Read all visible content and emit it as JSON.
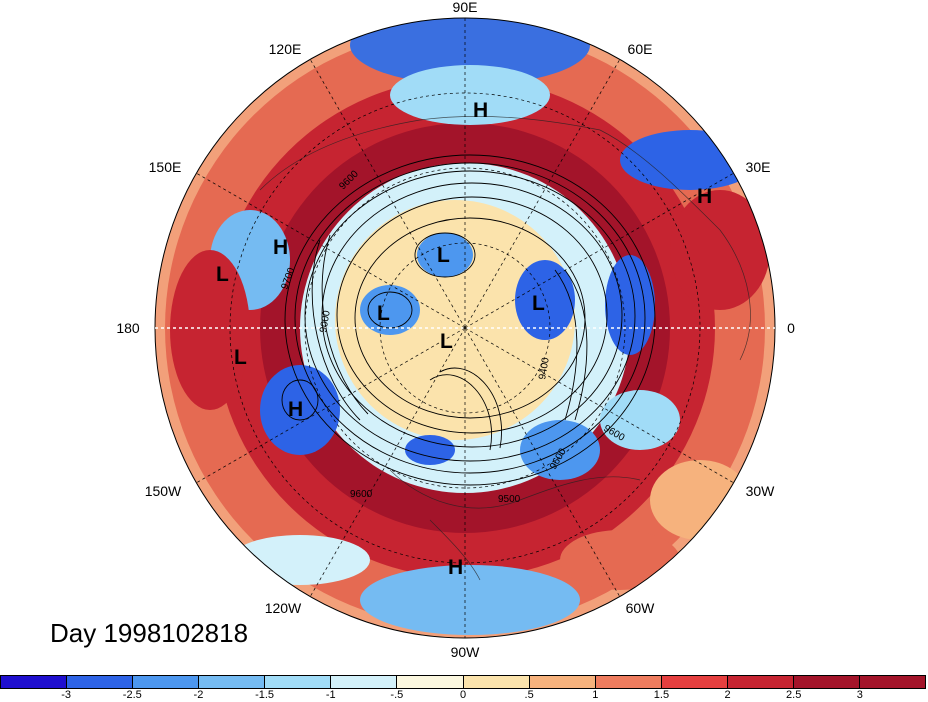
{
  "map": {
    "day_label": "Day 1998102818",
    "projection": "north-polar-stereographic",
    "longitude_labels": [
      "90E",
      "60E",
      "30E",
      "0",
      "30W",
      "60W",
      "90W",
      "120W",
      "150W",
      "180",
      "150E",
      "120E"
    ],
    "contour_labels": [
      "9700",
      "9600",
      "9500",
      "9000",
      "9600",
      "9500",
      "9400",
      "9600",
      "9600"
    ],
    "pressure_centers": [
      {
        "type": "H",
        "region": "northern Siberia"
      },
      {
        "type": "H",
        "region": "western Russia"
      },
      {
        "type": "H",
        "region": "North Pacific"
      },
      {
        "type": "L",
        "region": "central North Pacific"
      },
      {
        "type": "L",
        "region": "Arctic basin"
      },
      {
        "type": "L",
        "region": "near pole"
      },
      {
        "type": "L",
        "region": "Greenland Sea"
      },
      {
        "type": "L",
        "region": "Canadian Arctic"
      },
      {
        "type": "L",
        "region": "eastern North Pacific"
      },
      {
        "type": "H",
        "region": "northeast Pacific"
      },
      {
        "type": "H",
        "region": "Central America"
      }
    ]
  },
  "colorbar": {
    "tick_labels": [
      "-3",
      "-2.5",
      "-2",
      "-1.5",
      "-1",
      "-.5",
      "0",
      ".5",
      "1",
      "1.5",
      "2",
      "2.5",
      "3"
    ],
    "colors": [
      "#1f0fcf",
      "#2d63e6",
      "#4d97ef",
      "#75bbf2",
      "#a1dcf7",
      "#d3f1fa",
      "#fbf7df",
      "#fbe3ac",
      "#f6b27d",
      "#ee7c5e",
      "#e53f3f",
      "#c62431",
      "#a3142a",
      "#a3142a"
    ]
  }
}
